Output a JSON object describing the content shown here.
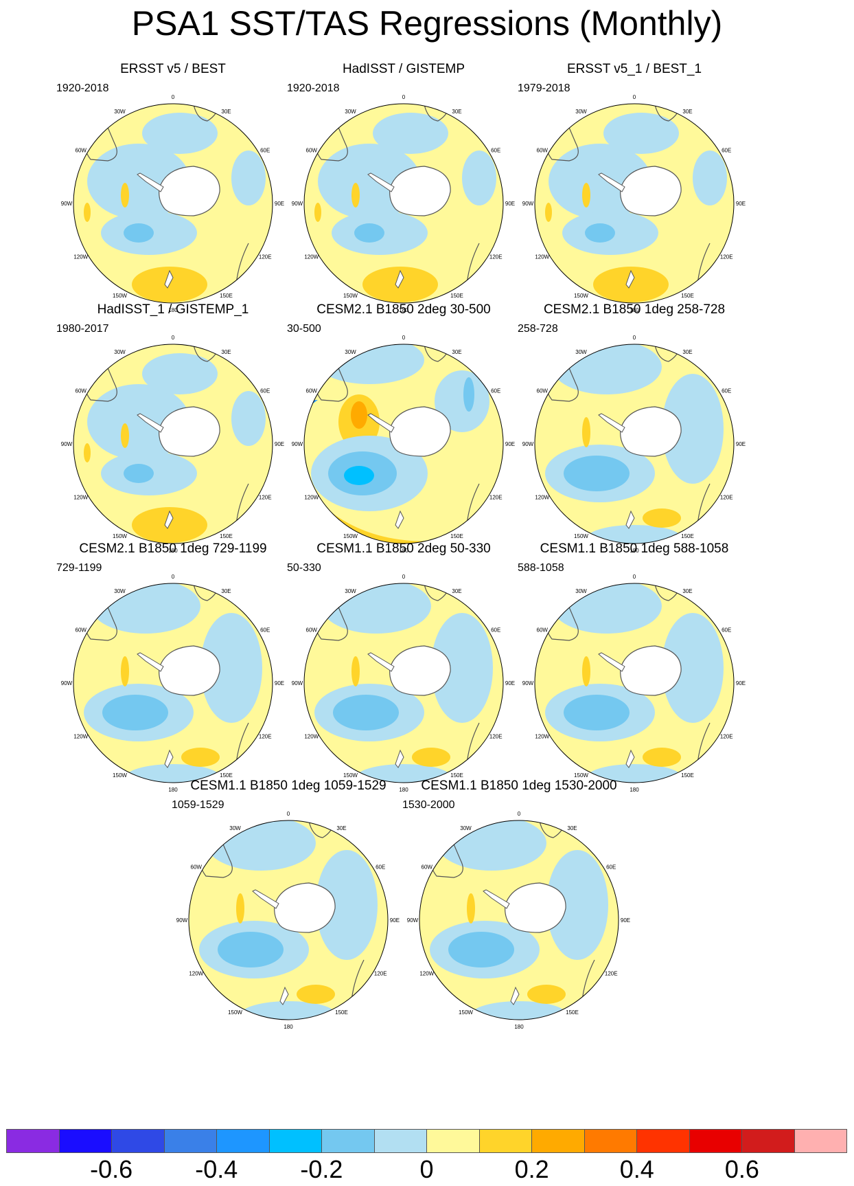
{
  "title": "PSA1 SST/TAS Regressions (Monthly)",
  "longitude_labels": [
    "0",
    "30E",
    "60E",
    "90E",
    "120E",
    "150E",
    "180",
    "150W",
    "120W",
    "90W",
    "60W",
    "30W"
  ],
  "panels": [
    {
      "title": "ERSST v5 / BEST",
      "period": "1920-2018",
      "pattern": "obs"
    },
    {
      "title": "HadISST / GISTEMP",
      "period": "1920-2018",
      "pattern": "obs"
    },
    {
      "title": "ERSST v5_1 / BEST_1",
      "period": "1979-2018",
      "pattern": "obs"
    },
    {
      "title": "HadISST_1 / GISTEMP_1",
      "period": "1980-2017",
      "pattern": "obs"
    },
    {
      "title": "CESM2.1 B1850 2deg 30-500",
      "period": "30-500",
      "pattern": "strong"
    },
    {
      "title": "CESM2.1 B1850 1deg 258-728",
      "period": "258-728",
      "pattern": "model"
    },
    {
      "title": "CESM2.1 B1850 1deg 729-1199",
      "period": "729-1199",
      "pattern": "model"
    },
    {
      "title": "CESM1.1 B1850 2deg 50-330",
      "period": "50-330",
      "pattern": "model"
    },
    {
      "title": "CESM1.1 B1850 1deg 588-1058",
      "period": "588-1058",
      "pattern": "model"
    },
    {
      "title": "CESM1.1 B1850 1deg 1059-1529",
      "period": "1059-1529",
      "pattern": "model"
    },
    {
      "title": "CESM1.1 B1850 1deg 1530-2000",
      "period": "1530-2000",
      "pattern": "model"
    }
  ],
  "colorbar": {
    "colors": [
      "#8a2be2",
      "#1a0dff",
      "#2f49e6",
      "#3a80e8",
      "#1e96ff",
      "#00c0ff",
      "#74c8f0",
      "#b2dff2",
      "#fff99a",
      "#ffd42a",
      "#ffaa00",
      "#ff7a00",
      "#ff3300",
      "#e80000",
      "#d21c1c",
      "#ffb0b0"
    ],
    "tick_labels": [
      "-0.6",
      "-0.4",
      "-0.2",
      "0",
      "0.2",
      "0.4",
      "0.6"
    ]
  },
  "fill_colors": {
    "light_blue": "#b2dff2",
    "mid_blue": "#74c8f0",
    "bright_blue": "#00c0ff",
    "light_yellow": "#fff99a",
    "yellow_orange": "#ffd42a",
    "land": "#ffffff",
    "coast": "#555555"
  }
}
